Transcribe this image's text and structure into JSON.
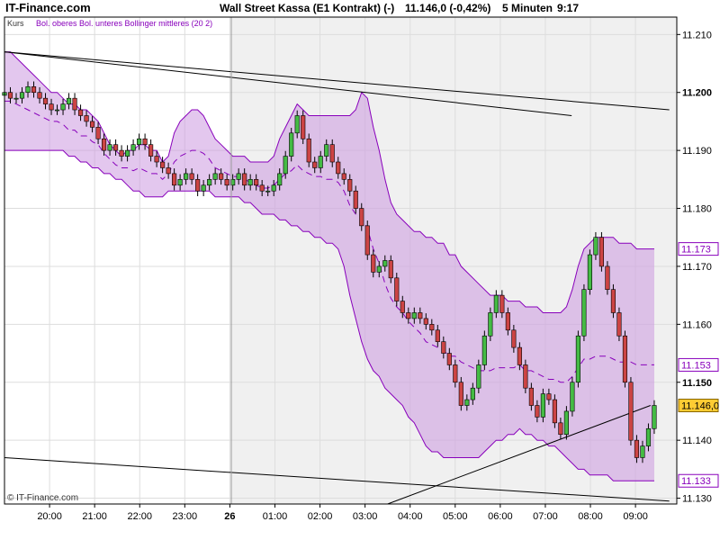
{
  "header": {
    "site": "IT-Finance.com",
    "title": "Wall Street Kassa (E1 Kontrakt) (-)",
    "last_quote": "11.146,0 (-0,42%)",
    "interval": "5 Minuten",
    "time": "9:17"
  },
  "legend": {
    "kurs": "Kurs",
    "bollinger": "Bol. oberes Bol. unteres Bollinger mittleres (20 2)"
  },
  "copyright": "© IT-Finance.com",
  "colors": {
    "band_fill": "#cc99e0",
    "band_line": "#8800bb",
    "candle_up": "#44bb44",
    "candle_down": "#cc4444",
    "last_tag": "#ffcc33",
    "plot_bg": "#f0f0f0"
  },
  "chart_data": {
    "type": "candlestick",
    "instrument": "Wall Street Kassa (E1 Kontrakt)",
    "interval": "5 Minuten",
    "ylim": [
      11129,
      11213
    ],
    "y_ticks": [
      "11.210",
      "11.200",
      "11.190",
      "11.180",
      "11.170",
      "11.160",
      "11.150",
      "11.140",
      "11.130"
    ],
    "y_ticks_bold": [
      "11.200",
      "11.150"
    ],
    "x_ticks": [
      "20:00",
      "21:00",
      "22:00",
      "23:00",
      "26",
      "01:00",
      "02:00",
      "03:00",
      "04:00",
      "05:00",
      "06:00",
      "07:00",
      "08:00",
      "09:00"
    ],
    "x_ticks_bold": [
      "26"
    ],
    "day_separator": "26",
    "right_tags": [
      {
        "label": "11.173",
        "value": 11173,
        "type": "bollinger_upper"
      },
      {
        "label": "11.153",
        "value": 11153,
        "type": "bollinger_middle"
      },
      {
        "label": "11.146,0",
        "value": 11146,
        "type": "last"
      },
      {
        "label": "11.133",
        "value": 11133,
        "type": "bollinger_lower"
      }
    ],
    "candles_close": [
      11200,
      11199,
      11199,
      11200,
      11201,
      11200,
      11199,
      11198,
      11197,
      11197,
      11198,
      11199,
      11197,
      11196,
      11195,
      11194,
      11192,
      11190,
      11191,
      11190,
      11189,
      11190,
      11191,
      11192,
      11191,
      11189,
      11188,
      11187,
      11186,
      11184,
      11185,
      11186,
      11185,
      11183,
      11184,
      11185,
      11186,
      11185,
      11184,
      11185,
      11186,
      11184,
      11185,
      11184,
      11183,
      11183,
      11184,
      11186,
      11189,
      11193,
      11196,
      11192,
      11188,
      11187,
      11189,
      11191,
      11188,
      11186,
      11185,
      11183,
      11180,
      11177,
      11172,
      11169,
      11170,
      11171,
      11168,
      11164,
      11162,
      11161,
      11162,
      11161,
      11160,
      11159,
      11157,
      11155,
      11153,
      11150,
      11146,
      11147,
      11149,
      11153,
      11158,
      11162,
      11165,
      11162,
      11159,
      11156,
      11153,
      11149,
      11146,
      11144,
      11148,
      11147,
      11143,
      11141,
      11145,
      11150,
      11158,
      11166,
      11172,
      11175,
      11170,
      11166,
      11162,
      11158,
      11150,
      11140,
      11137,
      11139,
      11142,
      11146
    ],
    "bollinger_upper": [
      11207,
      11207,
      11206,
      11205,
      11204,
      11203,
      11202,
      11201,
      11200,
      11200,
      11199,
      11198,
      11198,
      11197,
      11197,
      11196,
      11195,
      11193,
      11191,
      11190,
      11189,
      11190,
      11190,
      11191,
      11191,
      11190,
      11190,
      11188,
      11189,
      11193,
      11195,
      11196,
      11197,
      11197,
      11196,
      11194,
      11192,
      11191,
      11190,
      11189,
      11189,
      11189,
      11188,
      11188,
      11188,
      11188,
      11189,
      11192,
      11194,
      11196,
      11198,
      11197,
      11196,
      11196,
      11196,
      11196,
      11196,
      11196,
      11196,
      11196,
      11197,
      11200,
      11199,
      11194,
      11190,
      11185,
      11181,
      11179,
      11178,
      11177,
      11176,
      11176,
      11175,
      11175,
      11174,
      11174,
      11172,
      11172,
      11170,
      11169,
      11168,
      11167,
      11166,
      11165,
      11165,
      11165,
      11164,
      11164,
      11164,
      11163,
      11163,
      11163,
      11162,
      11162,
      11162,
      11162,
      11163,
      11166,
      11170,
      11173,
      11174,
      11175,
      11175,
      11175,
      11175,
      11174,
      11174,
      11174,
      11173,
      11173,
      11173,
      11173
    ],
    "bollinger_lower": [
      11190,
      11190,
      11190,
      11190,
      11190,
      11190,
      11190,
      11190,
      11190,
      11190,
      11190,
      11189,
      11189,
      11188,
      11188,
      11187,
      11187,
      11186,
      11186,
      11185,
      11185,
      11184,
      11183,
      11183,
      11182,
      11182,
      11182,
      11182,
      11183,
      11183,
      11183,
      11183,
      11183,
      11183,
      11183,
      11183,
      11182,
      11182,
      11182,
      11182,
      11182,
      11181,
      11181,
      11180,
      11179,
      11179,
      11179,
      11178,
      11178,
      11177,
      11177,
      11176,
      11176,
      11175,
      11175,
      11174,
      11174,
      11173,
      11170,
      11165,
      11161,
      11157,
      11154,
      11152,
      11151,
      11149,
      11148,
      11147,
      11146,
      11144,
      11143,
      11141,
      11139,
      11138,
      11138,
      11137,
      11137,
      11137,
      11137,
      11137,
      11137,
      11137,
      11138,
      11139,
      11140,
      11140,
      11141,
      11141,
      11142,
      11141,
      11141,
      11140,
      11140,
      11139,
      11139,
      11138,
      11137,
      11136,
      11135,
      11135,
      11134,
      11134,
      11134,
      11134,
      11133,
      11133,
      11133,
      11133,
      11133,
      11133,
      11133,
      11133
    ],
    "trendlines": [
      {
        "from": [
          "19:00",
          11207
        ],
        "to": [
          "09:45",
          11197
        ]
      },
      {
        "from": [
          "19:00",
          11207
        ],
        "to": [
          "07:35",
          11196
        ]
      },
      {
        "from": [
          "19:00",
          11137
        ],
        "to": [
          "09:45",
          11129.5
        ]
      },
      {
        "from": [
          "03:30",
          11129
        ],
        "to": [
          "09:20",
          11146
        ]
      }
    ]
  }
}
